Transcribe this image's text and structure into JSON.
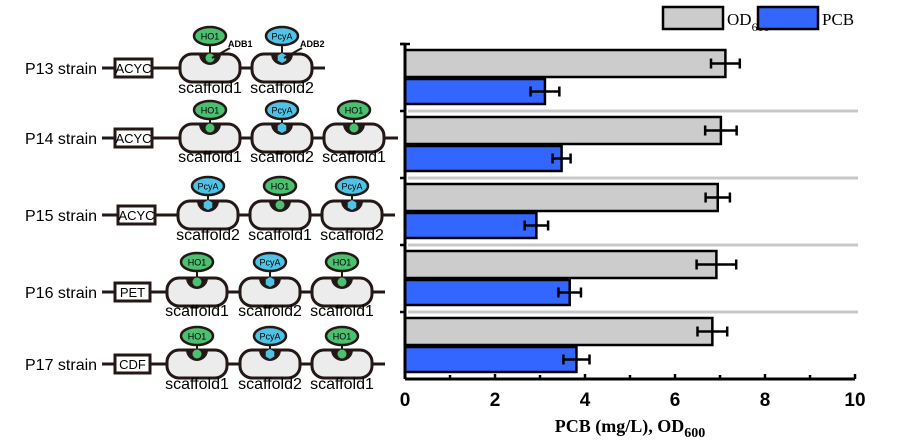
{
  "chart_data": {
    "type": "bar",
    "orientation": "horizontal",
    "categories": [
      "P13 strain",
      "P14 strain",
      "P15 strain",
      "P16 strain",
      "P17 strain"
    ],
    "series": [
      {
        "name": "OD",
        "name_subscript": "600",
        "color": "#cccccc",
        "values": [
          7.12,
          7.02,
          6.95,
          6.92,
          6.83
        ],
        "errors": [
          0.32,
          0.35,
          0.27,
          0.44,
          0.33
        ]
      },
      {
        "name": "PCB",
        "color": "#3366ff",
        "values": [
          3.11,
          3.48,
          2.92,
          3.66,
          3.81
        ],
        "errors": [
          0.32,
          0.2,
          0.26,
          0.25,
          0.29
        ]
      }
    ],
    "xlabel": "PCB (mg/L), OD",
    "xlabel_subscript": "600",
    "xlim": [
      0,
      10
    ],
    "xticks": [
      "0",
      "2",
      "4",
      "6",
      "8",
      "10"
    ],
    "legend_position": "top-right",
    "grid": false
  },
  "constructs": [
    {
      "strain": "P13 strain",
      "plasmid": "ACYC",
      "scaffolds": [
        {
          "name": "scaffold1",
          "protein": "HO1",
          "adb": "ADB1"
        },
        {
          "name": "scaffold2",
          "protein": "PcyA",
          "adb": "ADB2"
        }
      ]
    },
    {
      "strain": "P14 strain",
      "plasmid": "ACYC",
      "scaffolds": [
        {
          "name": "scaffold1",
          "protein": "HO1"
        },
        {
          "name": "scaffold2",
          "protein": "PcyA"
        },
        {
          "name": "scaffold1",
          "protein": "HO1"
        }
      ]
    },
    {
      "strain": "P15 strain",
      "plasmid": "ACYC",
      "scaffolds": [
        {
          "name": "scaffold2",
          "protein": "PcyA"
        },
        {
          "name": "scaffold1",
          "protein": "HO1"
        },
        {
          "name": "scaffold2",
          "protein": "PcyA"
        }
      ]
    },
    {
      "strain": "P16 strain",
      "plasmid": "PET",
      "scaffolds": [
        {
          "name": "scaffold1",
          "protein": "HO1"
        },
        {
          "name": "scaffold2",
          "protein": "PcyA"
        },
        {
          "name": "scaffold1",
          "protein": "HO1"
        }
      ]
    },
    {
      "strain": "P17 strain",
      "plasmid": "CDF",
      "scaffolds": [
        {
          "name": "scaffold1",
          "protein": "HO1"
        },
        {
          "name": "scaffold2",
          "protein": "PcyA"
        },
        {
          "name": "scaffold1",
          "protein": "HO1"
        }
      ]
    }
  ],
  "colors": {
    "HO1": "#4cc070",
    "PcyA": "#4fc3e6",
    "scaffold": "#ececec",
    "outline": "#231815"
  }
}
